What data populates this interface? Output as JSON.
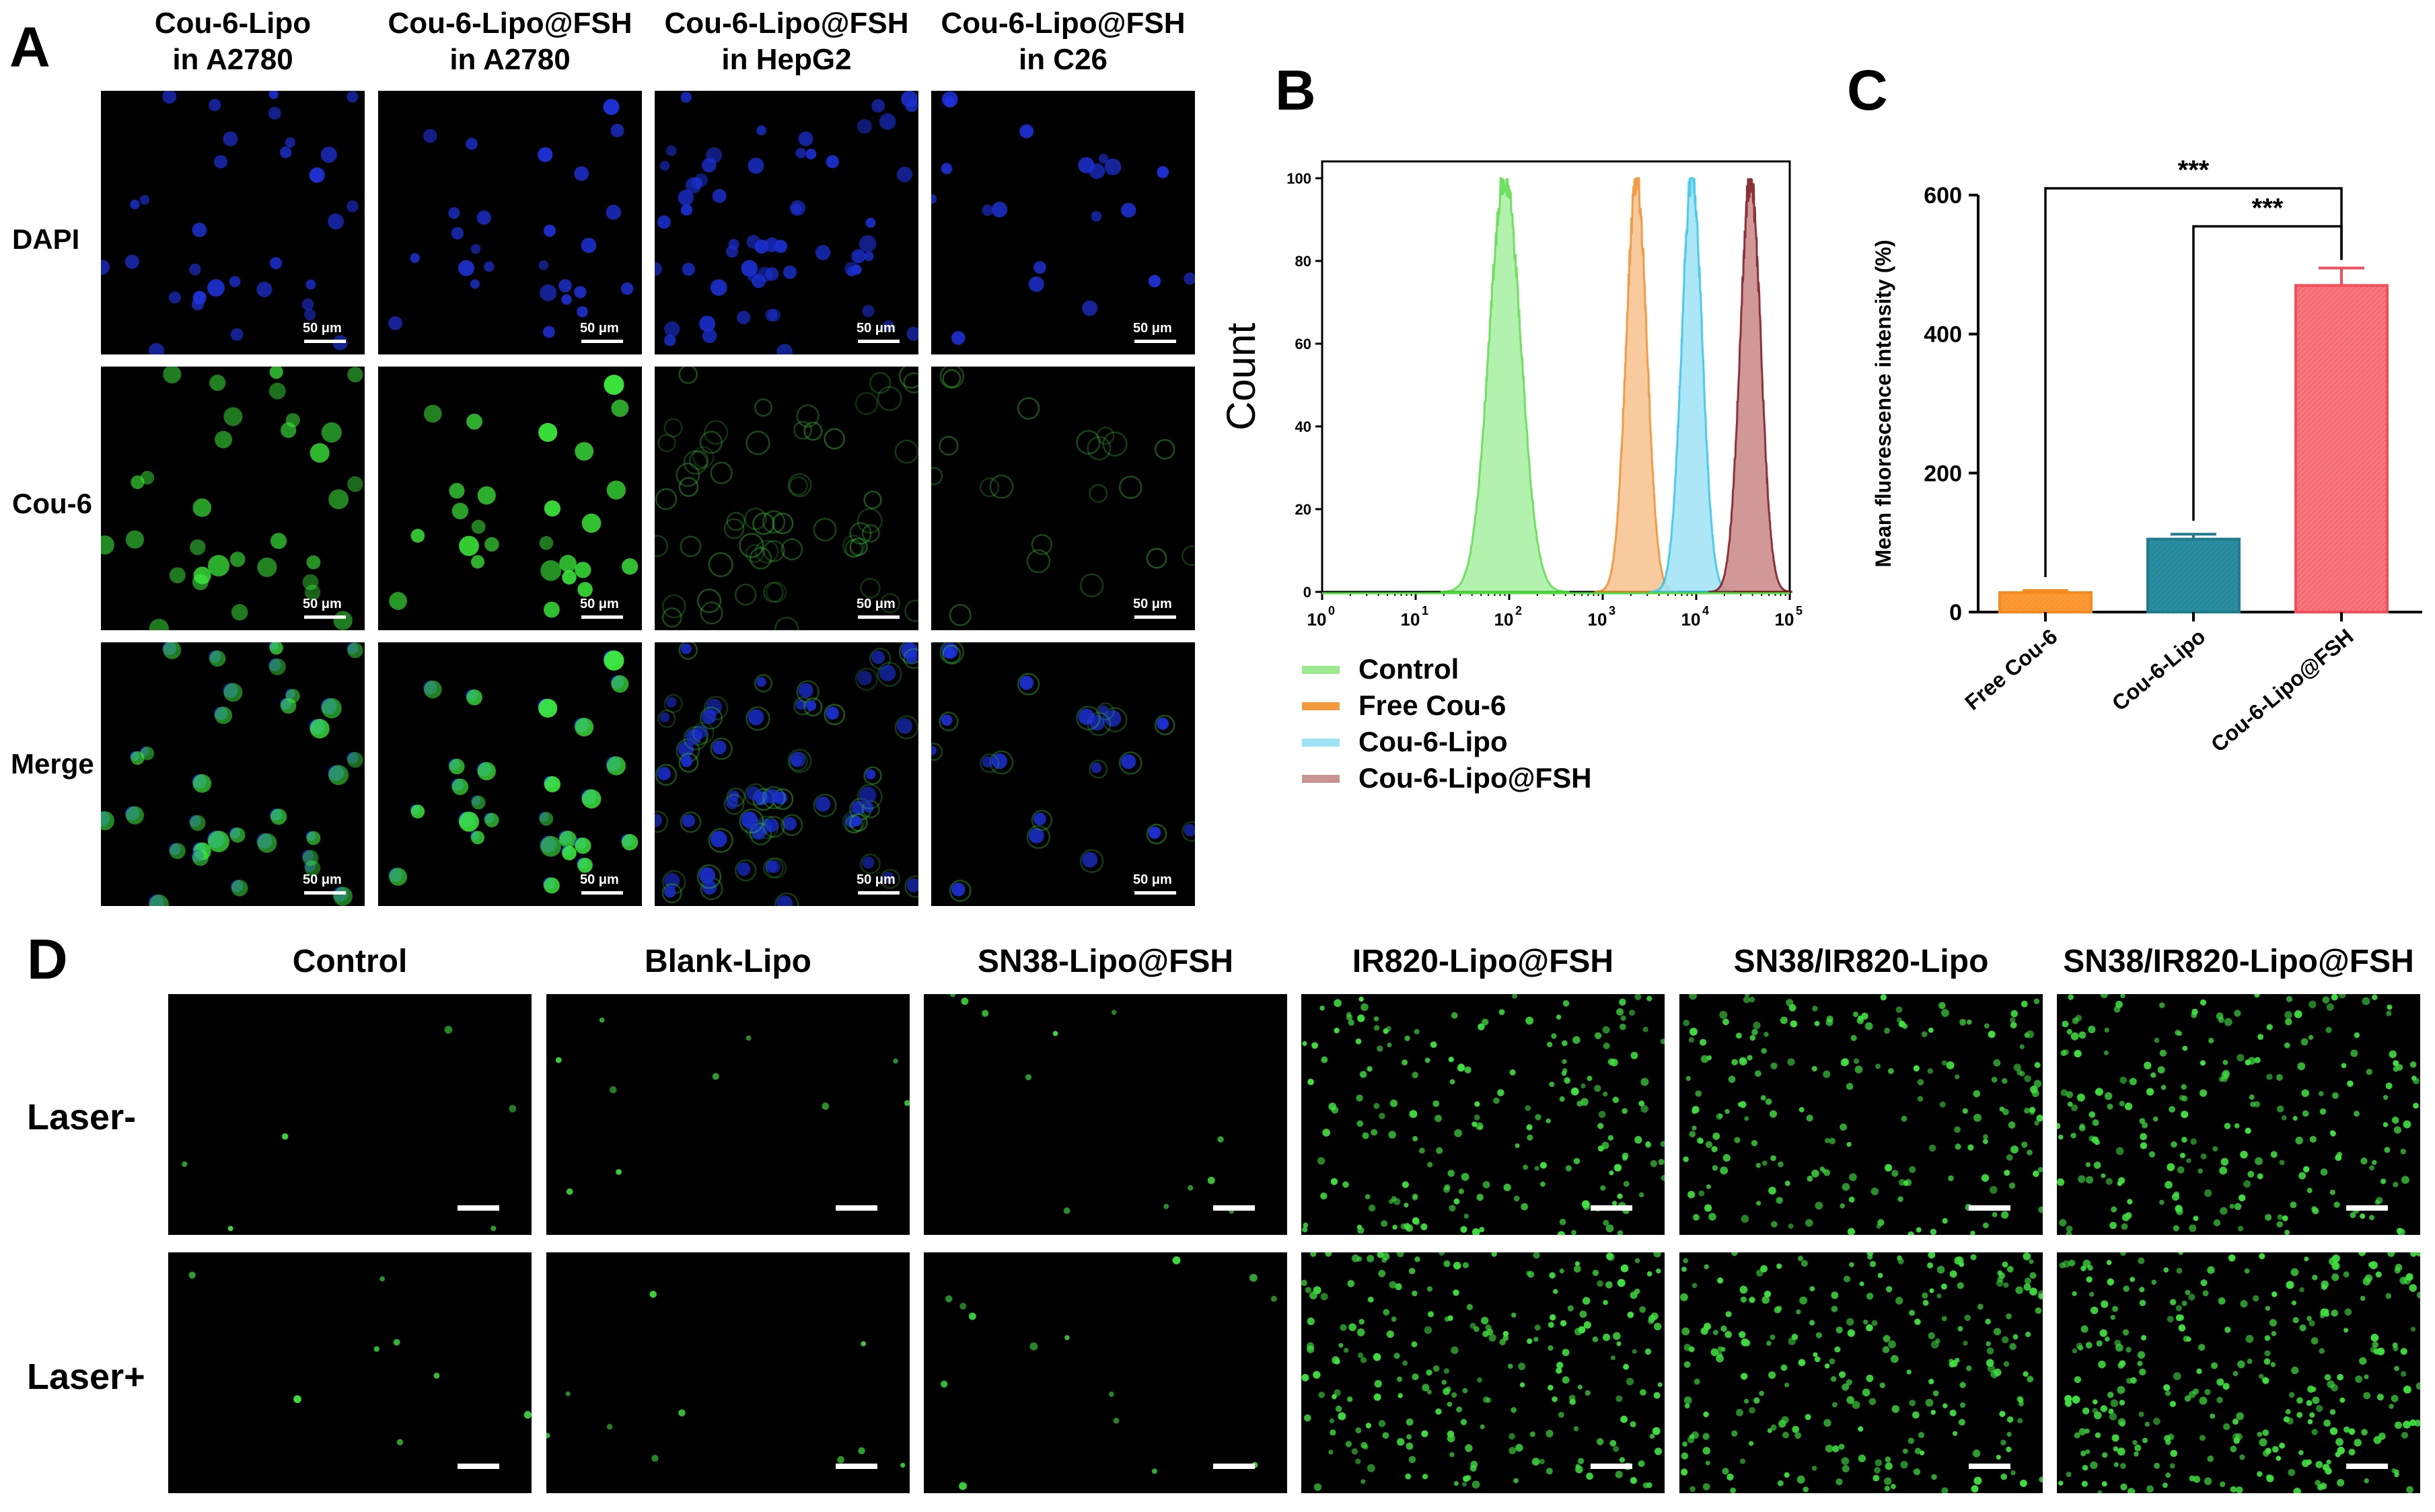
{
  "panel_a": {
    "letter": "A",
    "columns": [
      {
        "line1": "Cou-6-Lipo",
        "line2": "in A2780"
      },
      {
        "line1": "Cou-6-Lipo@FSH",
        "line2": "in A2780"
      },
      {
        "line1": "Cou-6-Lipo@FSH",
        "line2": "in HepG2"
      },
      {
        "line1": "Cou-6-Lipo@FSH",
        "line2": "in C26"
      }
    ],
    "rows": [
      "DAPI",
      "Cou-6",
      "Merge"
    ],
    "scale_label": "50 μm"
  },
  "panel_b": {
    "letter": "B",
    "chart_data": {
      "type": "area",
      "ylabel": "Count",
      "xscale": "log",
      "xlim": [
        1,
        100000
      ],
      "ylim": [
        0,
        100
      ],
      "y_ticks": [
        "0",
        "20",
        "40",
        "60",
        "80",
        "100"
      ],
      "x_ticks": [
        {
          "base": "10",
          "exp": "0"
        },
        {
          "base": "10",
          "exp": "1"
        },
        {
          "base": "10",
          "exp": "2"
        },
        {
          "base": "10",
          "exp": "3"
        },
        {
          "base": "10",
          "exp": "4"
        },
        {
          "base": "10",
          "exp": "5"
        }
      ],
      "series": [
        {
          "name": "Control",
          "peak_x": 90,
          "peak_y": 100,
          "fill": "#a6f0a0",
          "stroke": "#55dd44",
          "legend_color": "#9be88f"
        },
        {
          "name": "Free Cou-6",
          "peak_x": 2300,
          "peak_y": 100,
          "fill": "#f6c28e",
          "stroke": "#f28a25",
          "legend_color": "#f59a3c"
        },
        {
          "name": "Cou-6-Lipo",
          "peak_x": 9000,
          "peak_y": 100,
          "fill": "#9fe3f6",
          "stroke": "#2cc3ea",
          "legend_color": "#9fe3f6"
        },
        {
          "name": "Cou-6-Lipo@FSH",
          "peak_x": 38000,
          "peak_y": 100,
          "fill": "#c98787",
          "stroke": "#7a0f16",
          "legend_color": "#c89390"
        }
      ],
      "legend_placement": "bottom"
    }
  },
  "panel_c": {
    "letter": "C",
    "chart_data": {
      "type": "bar",
      "categories": [
        "Free Cou-6",
        "Cou-6-Lipo",
        "Cou-6-Lipo@FSH"
      ],
      "values": [
        28,
        105,
        470
      ],
      "errors": [
        3,
        7,
        25
      ],
      "ylabel": "Mean fluorescence intensity (%)",
      "ylim": [
        0,
        600
      ],
      "y_ticks": [
        "0",
        "200",
        "400",
        "600"
      ],
      "colors": [
        "#f58a1f",
        "#1f7c8e",
        "#f0505a"
      ],
      "fills": [
        "#fb9a34",
        "#2a8da0",
        "#f6777e"
      ],
      "significance": [
        {
          "from": 0,
          "to": 2,
          "label": "***"
        },
        {
          "from": 1,
          "to": 2,
          "label": "***"
        }
      ]
    }
  },
  "panel_d": {
    "letter": "D",
    "columns": [
      "Control",
      "Blank-Lipo",
      "SN38-Lipo@FSH",
      "IR820-Lipo@FSH",
      "SN38/IR820-Lipo",
      "SN38/IR820-Lipo@FSH"
    ],
    "rows": [
      "Laser-",
      "Laser+"
    ]
  }
}
